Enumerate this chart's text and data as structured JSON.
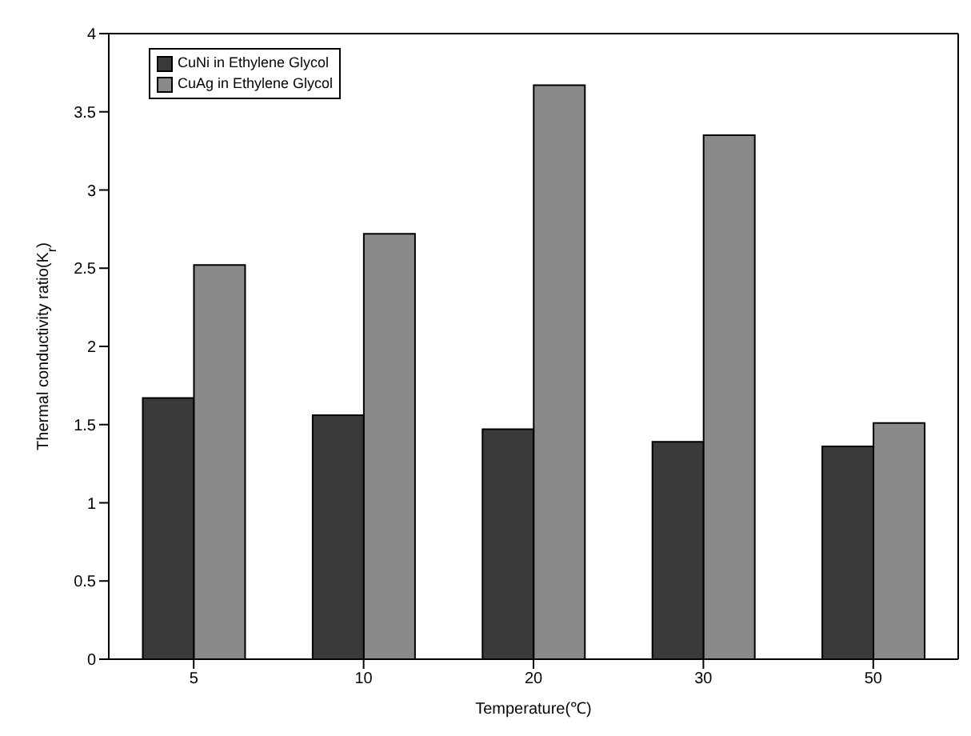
{
  "chart_data": {
    "type": "bar",
    "xlabel": "Temperature(℃)",
    "ylabel": "Thermal conductivity ratio(K$_{r}$)",
    "categories": [
      "5",
      "10",
      "20",
      "30",
      "50"
    ],
    "series": [
      {
        "name": "CuNi in Ethylene Glycol",
        "color": "#3a3a3a",
        "values": [
          1.67,
          1.56,
          1.47,
          1.39,
          1.36
        ]
      },
      {
        "name": "CuAg in Ethylene Glycol",
        "color": "#8a8a8a",
        "values": [
          2.52,
          2.72,
          3.67,
          3.35,
          1.51
        ]
      }
    ],
    "ylim": [
      0,
      4
    ],
    "yticks": [
      0,
      0.5,
      1,
      1.5,
      2,
      2.5,
      3,
      3.5,
      4
    ],
    "grid": false,
    "legend": "top left"
  }
}
